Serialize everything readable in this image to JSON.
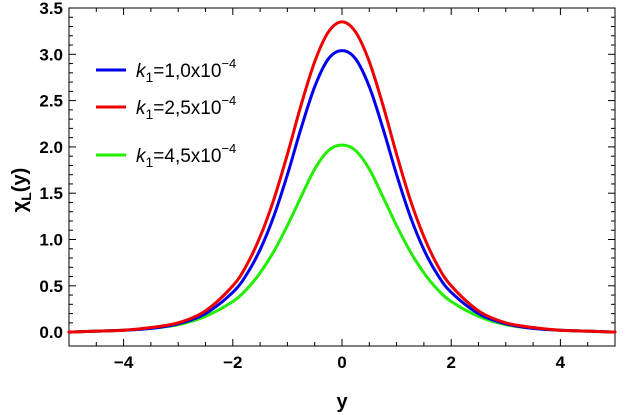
{
  "chart_data": {
    "type": "line",
    "xlabel": "y",
    "ylabel": "χ",
    "ylabel_sub": "L",
    "ylabel_arg": "(y)",
    "xlim": [
      -5,
      5
    ],
    "ylim": [
      -0.15,
      3.5
    ],
    "x_ticks": [
      -4,
      -2,
      0,
      2,
      4
    ],
    "x_tick_labels": [
      "−4",
      "−2",
      "0",
      "2",
      "4"
    ],
    "y_ticks": [
      0,
      0.5,
      1,
      1.5,
      2,
      2.5,
      3,
      3.5
    ],
    "y_tick_labels": [
      "0.0",
      "0.5",
      "1.0",
      "1.5",
      "2.0",
      "2.5",
      "3.0",
      "3.5"
    ],
    "grid": false,
    "legend_position": "top-left",
    "series": [
      {
        "legend": {
          "var": "k",
          "sub": "1",
          "value": "=1,0x10",
          "exp": "−4"
        },
        "color": "#0000ee",
        "x": [
          -5,
          -4.5,
          -4,
          -3.5,
          -3,
          -2.5,
          -2,
          -1.75,
          -1.5,
          -1.25,
          -1,
          -0.75,
          -0.5,
          -0.25,
          0,
          0.25,
          0.5,
          0.75,
          1,
          1.25,
          1.5,
          1.75,
          2,
          2.5,
          3,
          3.5,
          4,
          4.5,
          5
        ],
        "y": [
          0.0,
          0.01,
          0.02,
          0.04,
          0.09,
          0.2,
          0.43,
          0.62,
          0.89,
          1.25,
          1.7,
          2.2,
          2.65,
          2.95,
          3.04,
          2.95,
          2.65,
          2.2,
          1.7,
          1.25,
          0.89,
          0.62,
          0.43,
          0.2,
          0.09,
          0.04,
          0.02,
          0.01,
          0.0
        ]
      },
      {
        "legend": {
          "var": "k",
          "sub": "1",
          "value": "=2,5x10",
          "exp": "−4"
        },
        "color": "#ee0000",
        "x": [
          -5,
          -4.5,
          -4,
          -3.5,
          -3,
          -2.5,
          -2,
          -1.75,
          -1.5,
          -1.25,
          -1,
          -0.75,
          -0.5,
          -0.25,
          0,
          0.25,
          0.5,
          0.75,
          1,
          1.25,
          1.5,
          1.75,
          2,
          2.5,
          3,
          3.5,
          4,
          4.5,
          5
        ],
        "y": [
          0.0,
          0.01,
          0.02,
          0.05,
          0.1,
          0.23,
          0.5,
          0.72,
          1.03,
          1.43,
          1.92,
          2.45,
          2.92,
          3.24,
          3.35,
          3.24,
          2.92,
          2.45,
          1.92,
          1.43,
          1.03,
          0.72,
          0.5,
          0.23,
          0.1,
          0.05,
          0.02,
          0.01,
          0.0
        ]
      },
      {
        "legend": {
          "var": "k",
          "sub": "1",
          "value": "=4,5x10",
          "exp": "−4"
        },
        "color": "#22ee00",
        "x": [
          -5,
          -4.5,
          -4,
          -3.5,
          -3,
          -2.5,
          -2,
          -1.75,
          -1.5,
          -1.25,
          -1,
          -0.75,
          -0.5,
          -0.25,
          0,
          0.25,
          0.5,
          0.75,
          1,
          1.25,
          1.5,
          1.75,
          2,
          2.5,
          3,
          3.5,
          4,
          4.5,
          5
        ],
        "y": [
          0.0,
          0.01,
          0.02,
          0.04,
          0.08,
          0.17,
          0.33,
          0.46,
          0.64,
          0.87,
          1.15,
          1.46,
          1.76,
          1.96,
          2.02,
          1.96,
          1.76,
          1.46,
          1.15,
          0.87,
          0.64,
          0.46,
          0.33,
          0.17,
          0.08,
          0.04,
          0.02,
          0.01,
          0.0
        ]
      }
    ]
  }
}
